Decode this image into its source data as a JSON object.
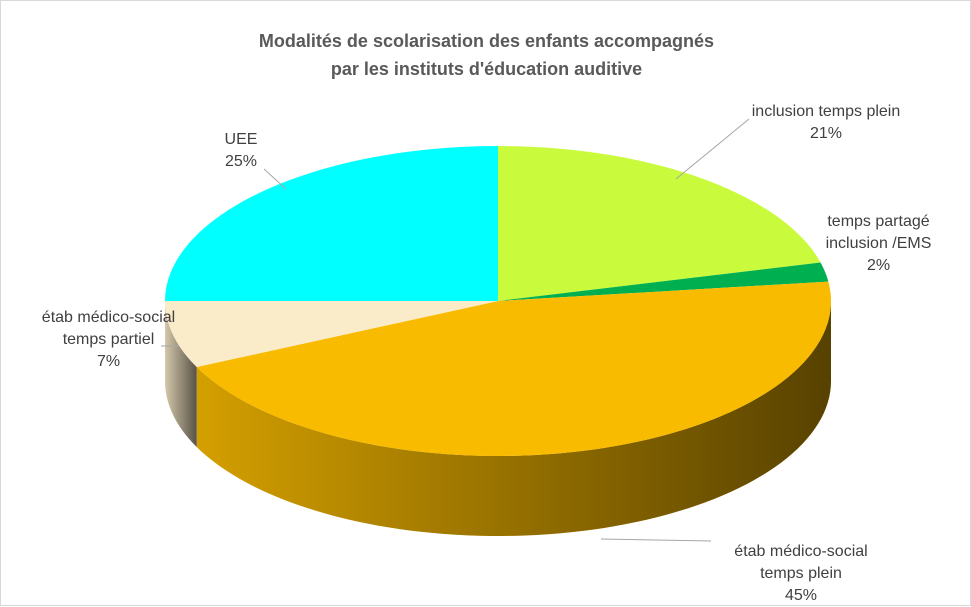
{
  "chart_data": {
    "type": "pie3d",
    "title": [
      "Modalités de scolarisation des enfants accompagnés",
      "par les instituts d'éducation auditive"
    ],
    "categories": [
      "inclusion temps plein",
      "temps partagé inclusion /EMS",
      "étab médico-social temps plein",
      "étab médico-social temps partiel",
      "UEE"
    ],
    "values": [
      21,
      2,
      45,
      7,
      25
    ],
    "value_labels": [
      "21%",
      "2%",
      "45%",
      "7%",
      "25%"
    ],
    "colors": [
      "#c9fb3c",
      "#00b050",
      "#f9bb00",
      "#faebc9",
      "#00ffff"
    ]
  }
}
